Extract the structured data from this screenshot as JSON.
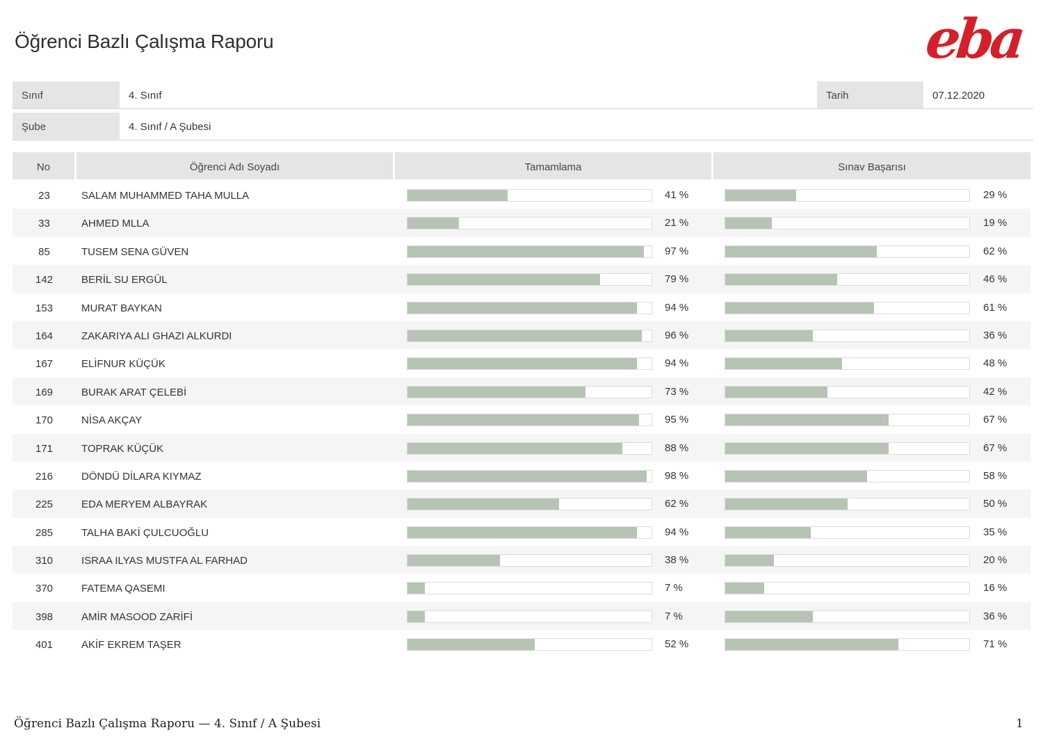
{
  "header": {
    "title": "Öğrenci Bazlı Çalışma Raporu",
    "logo_text": "eba",
    "brand_color": "#d4202a"
  },
  "info": {
    "class_label": "Sınıf",
    "class_value": "4. Sınıf",
    "date_label": "Tarih",
    "date_value": "07.12.2020",
    "branch_label": "Şube",
    "branch_value": "4. Sınıf / A Şubesi"
  },
  "table": {
    "headers": {
      "no": "No",
      "name": "Öğrenci Adı Soyadı",
      "completion": "Tamamlama",
      "exam": "Sınav Başarısı"
    },
    "bar_color": "#b7c4b5",
    "rows": [
      {
        "no": "23",
        "name": "SALAM MUHAMMED TAHA MULLA",
        "completion": 41,
        "completion_label": "41 %",
        "exam": 29,
        "exam_label": "29 %"
      },
      {
        "no": "33",
        "name": "AHMED MLLA",
        "completion": 21,
        "completion_label": "21 %",
        "exam": 19,
        "exam_label": "19 %"
      },
      {
        "no": "85",
        "name": "TUSEM SENA GÜVEN",
        "completion": 97,
        "completion_label": "97 %",
        "exam": 62,
        "exam_label": "62 %"
      },
      {
        "no": "142",
        "name": "BERİL SU ERGÜL",
        "completion": 79,
        "completion_label": "79 %",
        "exam": 46,
        "exam_label": "46 %"
      },
      {
        "no": "153",
        "name": "MURAT BAYKAN",
        "completion": 94,
        "completion_label": "94 %",
        "exam": 61,
        "exam_label": "61 %"
      },
      {
        "no": "164",
        "name": "ZAKARIYA ALI GHAZI ALKURDI",
        "completion": 96,
        "completion_label": "96 %",
        "exam": 36,
        "exam_label": "36 %"
      },
      {
        "no": "167",
        "name": "ELİFNUR KÜÇÜK",
        "completion": 94,
        "completion_label": "94 %",
        "exam": 48,
        "exam_label": "48 %"
      },
      {
        "no": "169",
        "name": "BURAK ARAT ÇELEBİ",
        "completion": 73,
        "completion_label": "73 %",
        "exam": 42,
        "exam_label": "42 %"
      },
      {
        "no": "170",
        "name": "NİSA AKÇAY",
        "completion": 95,
        "completion_label": "95 %",
        "exam": 67,
        "exam_label": "67 %"
      },
      {
        "no": "171",
        "name": "TOPRAK KÜÇÜK",
        "completion": 88,
        "completion_label": "88 %",
        "exam": 67,
        "exam_label": "67 %"
      },
      {
        "no": "216",
        "name": "DÖNDÜ DİLARA KIYMAZ",
        "completion": 98,
        "completion_label": "98 %",
        "exam": 58,
        "exam_label": "58 %"
      },
      {
        "no": "225",
        "name": "EDA MERYEM ALBAYRAK",
        "completion": 62,
        "completion_label": "62 %",
        "exam": 50,
        "exam_label": "50 %"
      },
      {
        "no": "285",
        "name": "TALHA BAKİ ÇULCUOĞLU",
        "completion": 94,
        "completion_label": "94 %",
        "exam": 35,
        "exam_label": "35 %"
      },
      {
        "no": "310",
        "name": "ISRAA ILYAS MUSTFA AL FARHAD",
        "completion": 38,
        "completion_label": "38 %",
        "exam": 20,
        "exam_label": "20 %"
      },
      {
        "no": "370",
        "name": "FATEMA QASEMI",
        "completion": 7,
        "completion_label": "7 %",
        "exam": 16,
        "exam_label": "16 %"
      },
      {
        "no": "398",
        "name": "AMİR MASOOD ZARİFİ",
        "completion": 7,
        "completion_label": "7 %",
        "exam": 36,
        "exam_label": "36 %"
      },
      {
        "no": "401",
        "name": "AKİF EKREM TAŞER",
        "completion": 52,
        "completion_label": "52 %",
        "exam": 71,
        "exam_label": "71 %"
      }
    ]
  },
  "footer": {
    "left": "Öğrenci Bazlı Çalışma Raporu — 4. Sınıf / A Şubesi",
    "page": "1"
  }
}
